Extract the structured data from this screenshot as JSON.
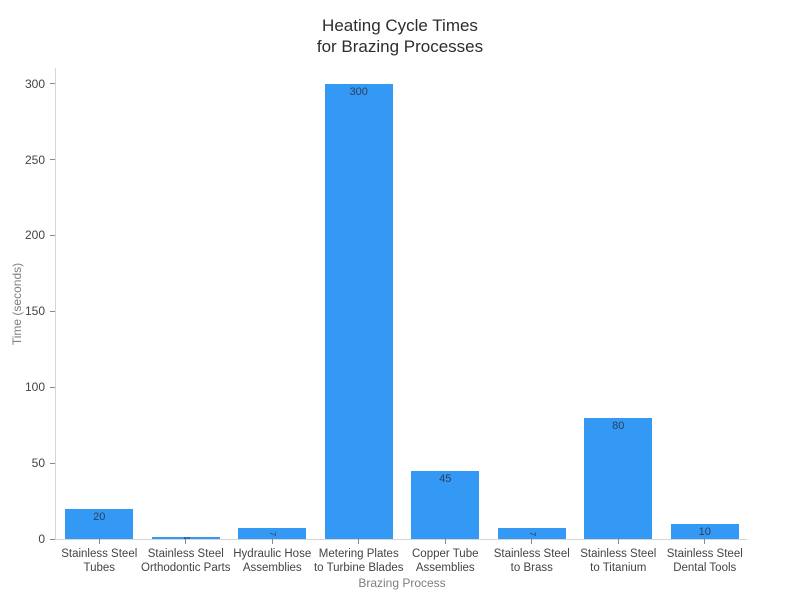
{
  "title": {
    "line1": "Heating Cycle Times",
    "line2": "for Brazing Processes",
    "full": "Heating Cycle Times for Brazing Processes"
  },
  "chart_data": {
    "type": "bar",
    "title": "Heating Cycle Times for Brazing Processes",
    "xlabel": "Brazing Process",
    "ylabel": "Time (seconds)",
    "categories": [
      "Stainless Steel Tubes",
      "Stainless Steel Orthodontic Parts",
      "Hydraulic Hose Assemblies",
      "Metering Plates to Turbine Blades",
      "Copper Tube Assemblies",
      "Stainless Steel to Brass",
      "Stainless Steel to Titanium",
      "Stainless Steel Dental Tools"
    ],
    "category_lines": [
      [
        "Stainless Steel",
        "Tubes"
      ],
      [
        "Stainless Steel",
        "Orthodontic Parts"
      ],
      [
        "Hydraulic Hose",
        "Assemblies"
      ],
      [
        "Metering Plates",
        "to Turbine Blades"
      ],
      [
        "Copper Tube",
        "Assemblies"
      ],
      [
        "Stainless Steel",
        "to Brass"
      ],
      [
        "Stainless Steel",
        "to Titanium"
      ],
      [
        "Stainless Steel",
        "Dental Tools"
      ]
    ],
    "values": [
      20,
      1,
      7,
      300,
      45,
      7,
      80,
      10
    ],
    "bar_labels": [
      "20",
      "1",
      "7",
      "300",
      "45",
      "7",
      "80",
      "10"
    ],
    "yticks": [
      0,
      50,
      100,
      150,
      200,
      250,
      300
    ],
    "ylim": [
      0,
      311
    ],
    "grid": false,
    "legend": "none"
  },
  "colors": {
    "bar": "#3498f5",
    "bar_label": "#2a3f5f",
    "tick_label": "#444444",
    "axis_title": "#7f7f7f",
    "title": "#2d2d2d",
    "axis_line": "#d6d6d6",
    "tick_mark": "#888888",
    "background": "#ffffff"
  }
}
